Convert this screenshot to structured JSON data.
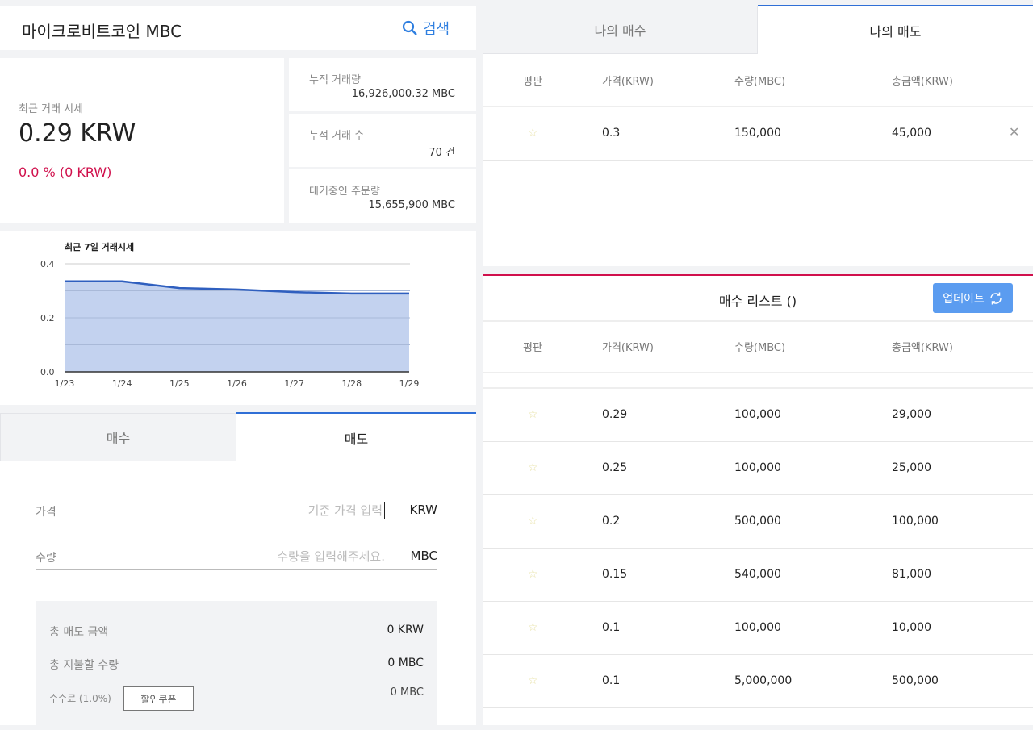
{
  "header": {
    "title": "마이크로비트코인 MBC",
    "search_label": "검색"
  },
  "price": {
    "label": "최근 거래 시세",
    "value": "0.29 KRW",
    "change": "0.0 % (0 KRW)",
    "change_color": "#d0104c"
  },
  "stats": [
    {
      "label": "누적 거래량",
      "value": "16,926,000.32 MBC"
    },
    {
      "label": "누적 거래 수",
      "value": "70 건"
    },
    {
      "label": "대기중인 주문량",
      "value": "15,655,900 MBC"
    }
  ],
  "chart_data": {
    "type": "area",
    "title": "최근 7일 거래시세",
    "categories": [
      "1/23",
      "1/24",
      "1/25",
      "1/26",
      "1/27",
      "1/28",
      "1/29"
    ],
    "values": [
      0.335,
      0.335,
      0.31,
      0.305,
      0.295,
      0.29,
      0.29
    ],
    "ylim": [
      0,
      0.4
    ],
    "yticks": [
      "0.0",
      "0.2",
      "0.4"
    ],
    "grid": true,
    "color": "#2f5fbf"
  },
  "trade_tabs": {
    "buy": "매수",
    "sell": "매도"
  },
  "form": {
    "price_label": "가격",
    "price_placeholder": "기준 가격 입력",
    "price_unit": "KRW",
    "qty_label": "수량",
    "qty_placeholder": "수량을 입력해주세요.",
    "qty_unit": "MBC"
  },
  "summary": {
    "total_label": "총 매도 금액",
    "total_value": "0 KRW",
    "pay_label": "총 지불할 수량",
    "pay_value": "0 MBC",
    "fee_label": "수수료 (1.0%)",
    "coupon_label": "할인쿠폰",
    "fee_value": "0 MBC"
  },
  "my_tabs": {
    "buy": "나의 매수",
    "sell": "나의 매도"
  },
  "columns": [
    "평판",
    "가격(KRW)",
    "수량(MBC)",
    "총금액(KRW)"
  ],
  "my_orders": [
    {
      "price": "0.3",
      "qty": "150,000",
      "total": "45,000"
    }
  ],
  "buy_list": {
    "title": "매수 리스트 ()",
    "update_label": "업데이트",
    "accent": "#5b9cf0",
    "rows": [
      {
        "price": "0.29",
        "qty": "100,000",
        "total": "29,000"
      },
      {
        "price": "0.25",
        "qty": "100,000",
        "total": "25,000"
      },
      {
        "price": "0.2",
        "qty": "500,000",
        "total": "100,000"
      },
      {
        "price": "0.15",
        "qty": "540,000",
        "total": "81,000"
      },
      {
        "price": "0.1",
        "qty": "100,000",
        "total": "10,000"
      },
      {
        "price": "0.1",
        "qty": "5,000,000",
        "total": "500,000"
      }
    ]
  }
}
